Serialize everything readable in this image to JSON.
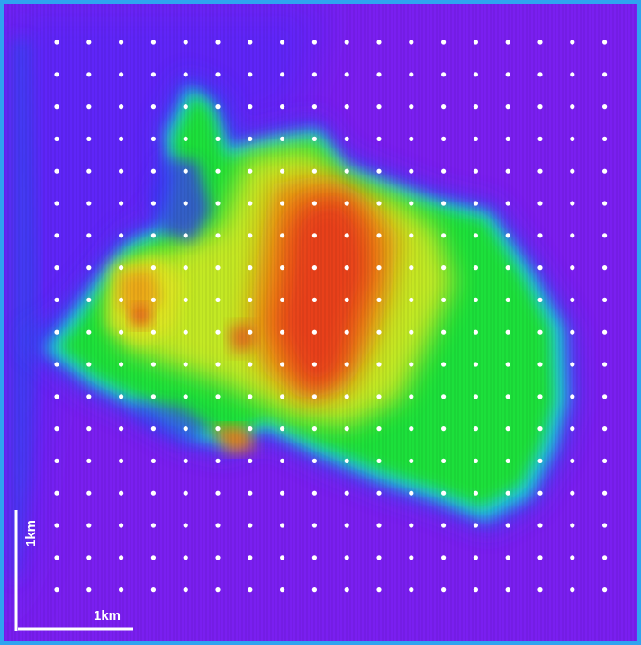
{
  "map": {
    "colors": {
      "background": "#7a1ff0",
      "frame": "#2fa3f0",
      "low": "#3a2cff",
      "cyan": "#22c8e6",
      "green": "#20e43a",
      "yellow": "#d8e820",
      "orange": "#f08a10",
      "red": "#e8301c",
      "grid_dots": "#ffffff"
    },
    "scale_bar": {
      "horizontal_label": "1km",
      "vertical_label": "1km"
    }
  }
}
